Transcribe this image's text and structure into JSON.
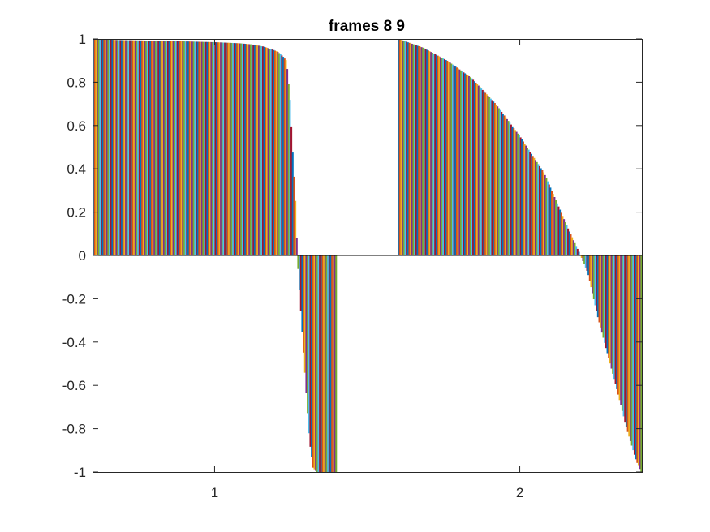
{
  "chart_data": {
    "type": "bar",
    "title": "frames 8 9",
    "xlabel": "",
    "ylabel": "",
    "xlim": [
      0.6,
      2.4
    ],
    "ylim": [
      -1,
      1
    ],
    "xticks": [
      1,
      2
    ],
    "xtick_labels": [
      "1",
      "2"
    ],
    "yticks": [
      1,
      0.8,
      0.6,
      0.4,
      0.2,
      0,
      -0.2,
      -0.4,
      -0.6,
      -0.8,
      -1
    ],
    "ytick_labels": [
      "1",
      "0.8",
      "0.6",
      "0.4",
      "0.2",
      "0",
      "-0.2",
      "-0.4",
      "-0.6",
      "-0.8",
      "-1"
    ],
    "grid": false,
    "legend": "none",
    "series_colors": [
      "#0072BD",
      "#D95319",
      "#EDB120",
      "#7E2F8E",
      "#77AC30",
      "#4DBEEE",
      "#A2142F"
    ],
    "groups": [
      {
        "category": 1,
        "profile": [
          [
            0,
            1.0
          ],
          [
            0.1,
            0.995
          ],
          [
            0.2,
            0.993
          ],
          [
            0.3,
            0.99
          ],
          [
            0.4,
            0.988
          ],
          [
            0.5,
            0.985
          ],
          [
            0.6,
            0.98
          ],
          [
            0.65,
            0.975
          ],
          [
            0.7,
            0.965
          ],
          [
            0.74,
            0.95
          ],
          [
            0.76,
            0.94
          ],
          [
            0.78,
            0.92
          ],
          [
            0.795,
            0.9
          ],
          [
            0.8,
            0.85
          ],
          [
            0.81,
            0.72
          ],
          [
            0.82,
            0.5
          ],
          [
            0.83,
            0.3
          ],
          [
            0.835,
            0.2
          ],
          [
            0.84,
            0.0
          ],
          [
            0.86,
            -0.35
          ],
          [
            0.875,
            -0.6
          ],
          [
            0.89,
            -0.85
          ],
          [
            0.905,
            -0.98
          ],
          [
            0.92,
            -1.0
          ],
          [
            1.0,
            -1.0
          ]
        ]
      },
      {
        "category": 2,
        "profile": [
          [
            0,
            1.0
          ],
          [
            0.1,
            0.96
          ],
          [
            0.2,
            0.9
          ],
          [
            0.3,
            0.82
          ],
          [
            0.4,
            0.7
          ],
          [
            0.5,
            0.55
          ],
          [
            0.6,
            0.38
          ],
          [
            0.7,
            0.12
          ],
          [
            0.75,
            0.0
          ],
          [
            0.78,
            -0.08
          ],
          [
            0.82,
            -0.28
          ],
          [
            0.86,
            -0.45
          ],
          [
            0.9,
            -0.62
          ],
          [
            0.94,
            -0.8
          ],
          [
            0.98,
            -0.95
          ],
          [
            1.0,
            -1.0
          ]
        ]
      }
    ]
  }
}
